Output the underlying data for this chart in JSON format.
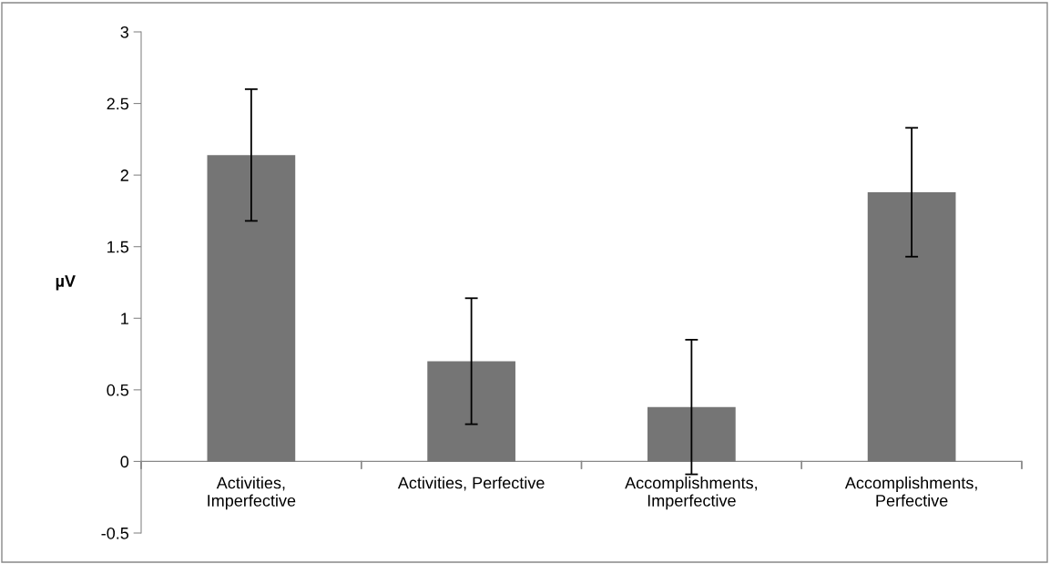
{
  "chart_data": {
    "type": "bar",
    "ylabel": "µV",
    "categories": [
      "Activities,\nImperfective",
      "Activities, Perfective",
      "Accomplishments,\nImperfective",
      "Accomplishments,\nPerfective"
    ],
    "values": [
      2.14,
      0.7,
      0.38,
      1.88
    ],
    "errors": [
      0.46,
      0.44,
      0.47,
      0.45
    ],
    "color": "#757575",
    "ylim": [
      -0.5,
      3
    ],
    "yticks": [
      {
        "value": -0.5,
        "label": "-0.5"
      },
      0,
      0.5,
      1,
      1.5,
      2,
      2.5,
      3
    ],
    "grid": false,
    "legend": false
  }
}
